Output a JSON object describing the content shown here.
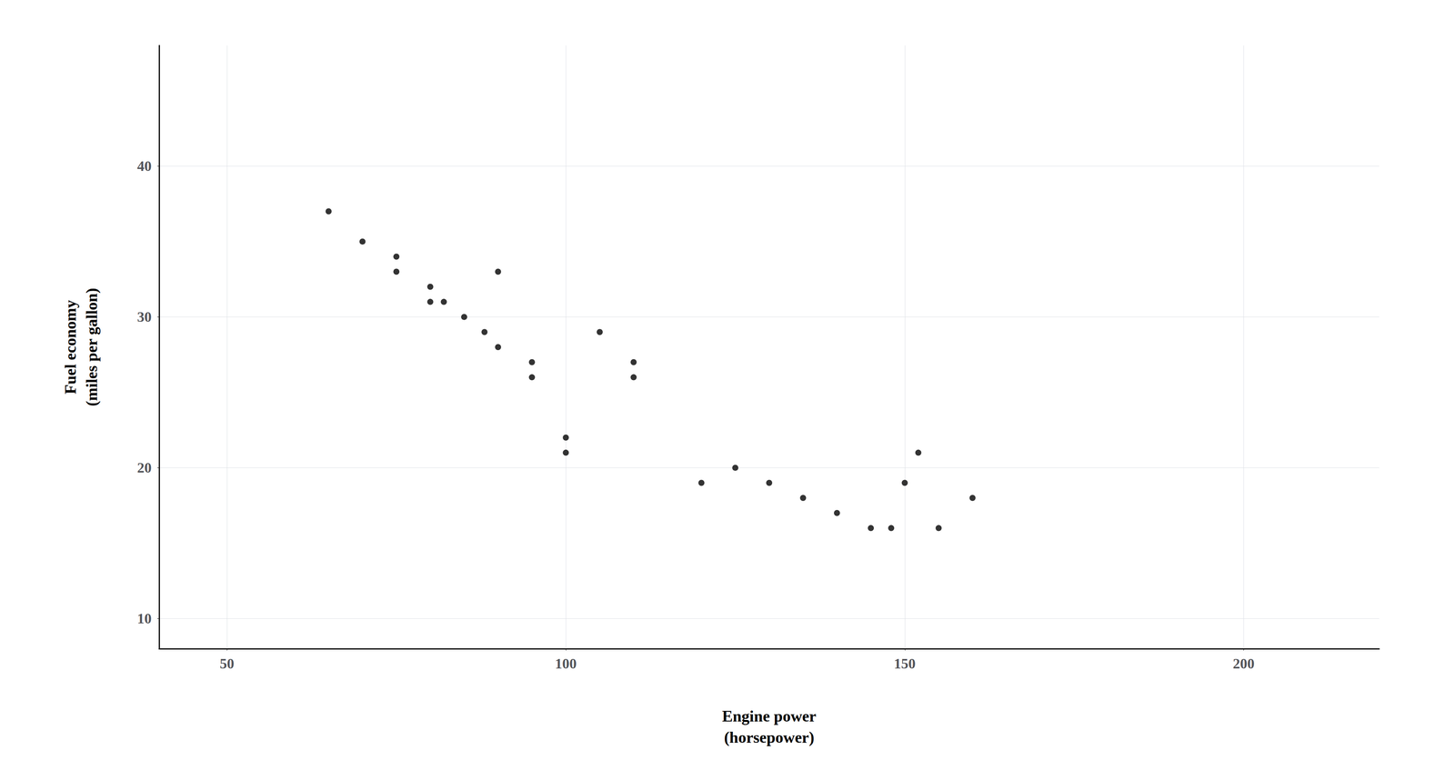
{
  "chart_data": {
    "type": "scatter",
    "xlabel": "Engine power\n(horsepower)",
    "ylabel": "Fuel economy\n(miles per gallon)",
    "x": [
      65,
      70,
      75,
      75,
      80,
      80,
      82,
      85,
      88,
      90,
      90,
      95,
      95,
      100,
      100,
      105,
      110,
      110,
      120,
      125,
      130,
      135,
      140,
      145,
      148,
      150,
      152,
      155,
      160
    ],
    "values": [
      37,
      35,
      34,
      33,
      32,
      31,
      31,
      30,
      29,
      28,
      33,
      27,
      26,
      21,
      22,
      29,
      27,
      26,
      19,
      20,
      19,
      18,
      17,
      16,
      16,
      19,
      21,
      16,
      18
    ],
    "color": "#000000",
    "xlim": [
      40,
      220
    ],
    "ylim": [
      8,
      48
    ],
    "xticks": [
      50,
      100,
      150,
      200
    ],
    "yticks": [
      10,
      20,
      30,
      40
    ],
    "grid": true
  }
}
